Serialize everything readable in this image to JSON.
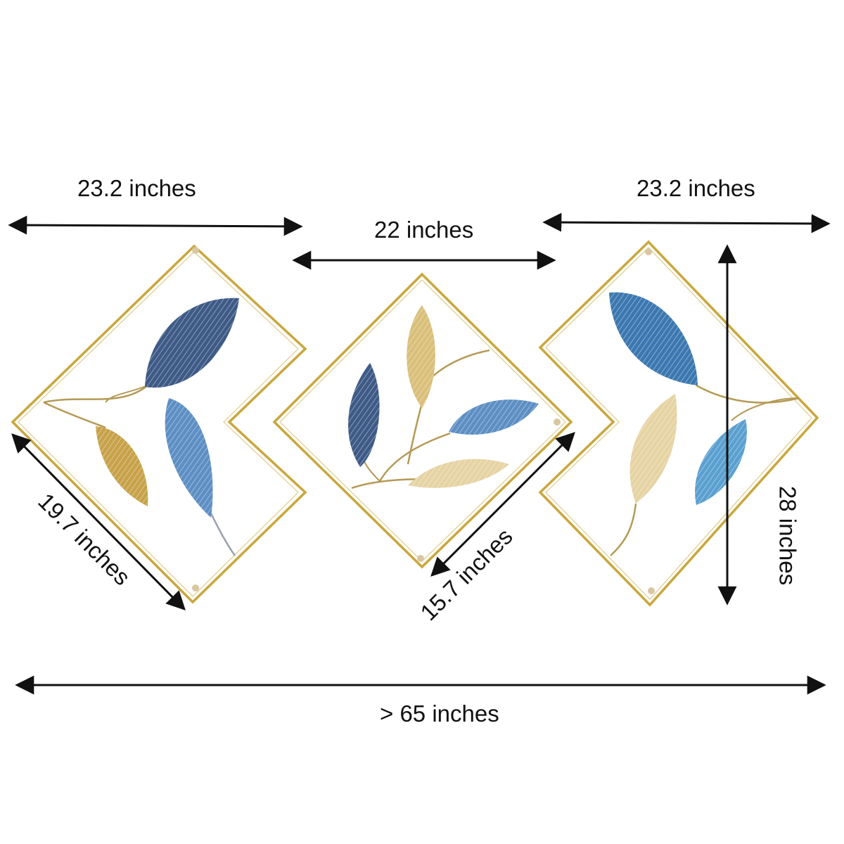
{
  "dimensions": {
    "left_width": "23.2 inches",
    "center_width": "22 inches",
    "right_width": "23.2 inches",
    "left_side": "19.7 inches",
    "center_side": "15.7 inches",
    "right_height": "28 inches",
    "total_width": "> 65 inches"
  },
  "colors": {
    "frame_gold": "#c9a73c",
    "leaf_gold": "#c7a24a",
    "leaf_cream": "#e6d3a3",
    "leaf_navy": "#3e5a86",
    "leaf_blue": "#5d8fc4",
    "leaf_light_blue": "#5aa0d0",
    "arrow": "#111111"
  },
  "panels": [
    {
      "name": "left-panel",
      "leaves": [
        "navy",
        "gold",
        "blue"
      ]
    },
    {
      "name": "center-panel",
      "leaves": [
        "navy",
        "cream",
        "blue",
        "cream"
      ]
    },
    {
      "name": "right-panel",
      "leaves": [
        "navy-blue",
        "cream",
        "light-blue"
      ]
    }
  ]
}
